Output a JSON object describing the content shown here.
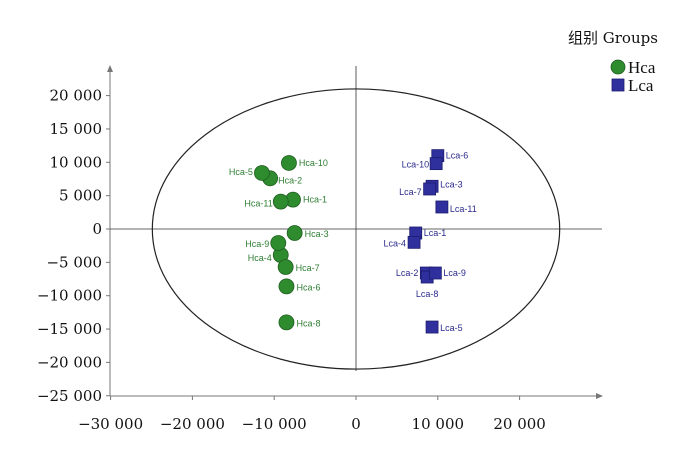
{
  "chart_data": {
    "type": "scatter",
    "title": "",
    "xlabel": "",
    "ylabel": "",
    "xlim": [
      -30000,
      30000
    ],
    "ylim": [
      -25000,
      25000
    ],
    "grid": false,
    "legend_placement": "top-right",
    "x_ticks": [
      {
        "value": -30000,
        "label": "−30 000"
      },
      {
        "value": -20000,
        "label": "−20 000"
      },
      {
        "value": -10000,
        "label": "−10 000"
      },
      {
        "value": 0,
        "label": "0"
      },
      {
        "value": 10000,
        "label": "10 000"
      },
      {
        "value": 20000,
        "label": "20 000"
      }
    ],
    "y_ticks": [
      {
        "value": 20000,
        "label": "20 000"
      },
      {
        "value": 15000,
        "label": "15 000"
      },
      {
        "value": 10000,
        "label": "10 000"
      },
      {
        "value": 5000,
        "label": "5 000"
      },
      {
        "value": 0,
        "label": "0"
      },
      {
        "value": -5000,
        "label": "−5 000"
      },
      {
        "value": -10000,
        "label": "−10 000"
      },
      {
        "value": -15000,
        "label": "−15 000"
      },
      {
        "value": -20000,
        "label": "−20 000"
      },
      {
        "value": -25000,
        "label": "−25 000"
      }
    ],
    "legend_title": "组别 Groups",
    "ellipse": {
      "cx": 0,
      "cy": 0,
      "rx": 24900,
      "ry": 21000
    },
    "series": [
      {
        "name": "Hca",
        "marker": "circle",
        "color": "#2e8b2e",
        "label_color": "#2e7d32",
        "points": [
          {
            "label": "Hca-1",
            "x": -7700,
            "y": 4400
          },
          {
            "label": "Hca-2",
            "x": -10500,
            "y": 7600
          },
          {
            "label": "Hca-3",
            "x": -7500,
            "y": -600
          },
          {
            "label": "Hca-4",
            "x": -9200,
            "y": -3900
          },
          {
            "label": "Hca-5",
            "x": -11500,
            "y": 8400
          },
          {
            "label": "Hca-6",
            "x": -8500,
            "y": -8600
          },
          {
            "label": "Hca-7",
            "x": -8600,
            "y": -5700
          },
          {
            "label": "Hca-8",
            "x": -8500,
            "y": -14000
          },
          {
            "label": "Hca-9",
            "x": -9500,
            "y": -2100
          },
          {
            "label": "Hca-10",
            "x": -8200,
            "y": 9900
          },
          {
            "label": "Hca-11",
            "x": -9200,
            "y": 4100
          }
        ]
      },
      {
        "name": "Lca",
        "marker": "square",
        "color": "#2f2f9e",
        "label_color": "#2a2a8c",
        "points": [
          {
            "label": "Lca-1",
            "x": 7300,
            "y": -600
          },
          {
            "label": "Lca-2",
            "x": 8600,
            "y": -6600
          },
          {
            "label": "Lca-3",
            "x": 9300,
            "y": 6400
          },
          {
            "label": "Lca-4",
            "x": 7100,
            "y": -2000
          },
          {
            "label": "Lca-5",
            "x": 9300,
            "y": -14700
          },
          {
            "label": "Lca-6",
            "x": 10000,
            "y": 11000
          },
          {
            "label": "Lca-7",
            "x": 9000,
            "y": 6000
          },
          {
            "label": "Lca-8",
            "x": 8700,
            "y": -7200
          },
          {
            "label": "Lca-9",
            "x": 9700,
            "y": -6600
          },
          {
            "label": "Lca-10",
            "x": 9800,
            "y": 9800
          },
          {
            "label": "Lca-11",
            "x": 10500,
            "y": 3300
          }
        ]
      }
    ]
  }
}
